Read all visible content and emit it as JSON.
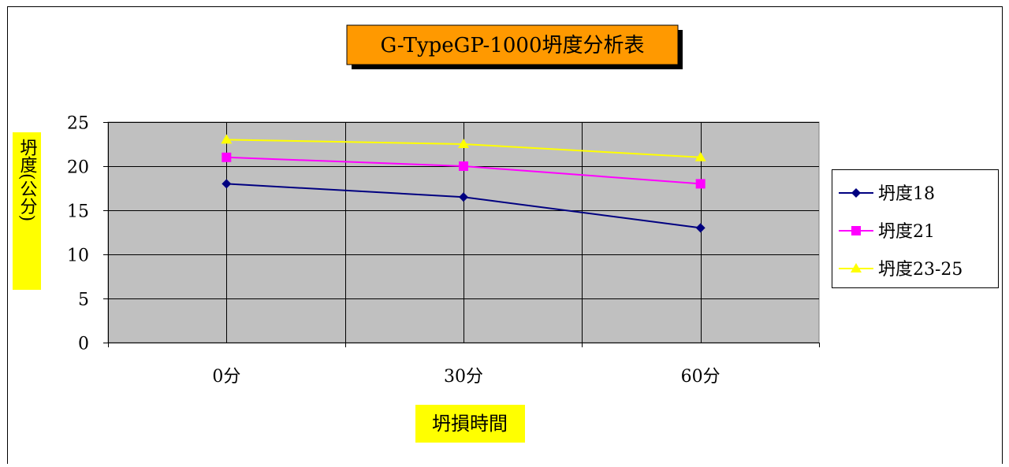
{
  "chart_data": {
    "type": "line",
    "title": "G-TypeGP-1000坍度分析表",
    "ylabel": "坍度(公分)",
    "xlabel": "坍損時間",
    "categories": [
      "0分",
      "30分",
      "60分"
    ],
    "ylim": [
      0,
      25
    ],
    "yticks": [
      0,
      5,
      10,
      15,
      20,
      25
    ],
    "grid": true,
    "legend_position": "right",
    "series": [
      {
        "name": "坍度18",
        "values": [
          18,
          16.5,
          13
        ],
        "color": "#000080",
        "marker": "diamond"
      },
      {
        "name": "坍度21",
        "values": [
          21,
          20,
          18
        ],
        "color": "#ff00ff",
        "marker": "square"
      },
      {
        "name": "坍度23-25",
        "values": [
          23,
          22.5,
          21
        ],
        "color": "#ffff00",
        "marker": "triangle"
      }
    ],
    "colors": {
      "plot_background": "#c0c0c0",
      "title_box": "#ff9900",
      "label_box": "#ffff00"
    }
  }
}
